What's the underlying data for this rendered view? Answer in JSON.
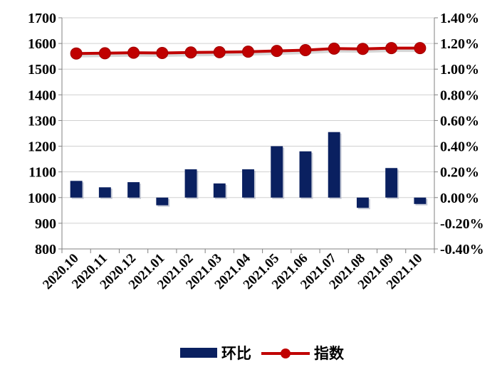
{
  "chart_data": {
    "type": "bar",
    "categories": [
      "2020.10",
      "2020.11",
      "2020.12",
      "2021.01",
      "2021.02",
      "2021.03",
      "2021.04",
      "2021.05",
      "2021.06",
      "2021.07",
      "2021.08",
      "2021.09",
      "2021.10"
    ],
    "series": [
      {
        "name": "环比",
        "type": "bar",
        "axis": "right",
        "color": "#0a2060",
        "values": [
          0.13,
          0.08,
          0.12,
          -0.06,
          0.22,
          0.11,
          0.22,
          0.4,
          0.36,
          0.51,
          -0.08,
          0.23,
          -0.05
        ]
      },
      {
        "name": "指数",
        "type": "line",
        "axis": "left",
        "color": "#c00000",
        "values": [
          1561,
          1562,
          1564,
          1563,
          1565,
          1566,
          1568,
          1571,
          1574,
          1580,
          1579,
          1582,
          1582
        ]
      }
    ],
    "y_left": {
      "min": 800,
      "max": 1700,
      "ticks": [
        "1700",
        "1600",
        "1500",
        "1400",
        "1300",
        "1200",
        "1100",
        "1000",
        "900",
        "800"
      ]
    },
    "y_right": {
      "min": -0.4,
      "max": 1.4,
      "ticks": [
        "1.40%",
        "1.20%",
        "1.00%",
        "0.80%",
        "0.60%",
        "0.40%",
        "0.20%",
        "0.00%",
        "-0.20%",
        "-0.40%"
      ]
    },
    "grid": true,
    "legend_position": "bottom",
    "title": "",
    "xlabel": "",
    "ylabel": ""
  }
}
